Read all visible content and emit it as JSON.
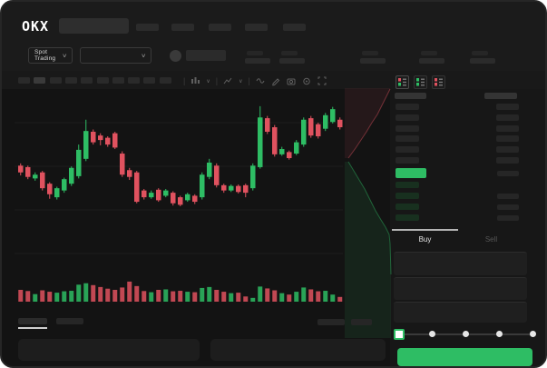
{
  "window": {
    "logo_text": "OKX"
  },
  "header": {
    "nav_item_count": 5,
    "search_value": ""
  },
  "market_bar": {
    "market_selector_label": "Spot Trading",
    "chevron": "∨",
    "stat_block_count": 5
  },
  "chart_toolbar": {
    "timeframe_count": 10,
    "active_timeframe_index": 1,
    "icons": [
      "indicators-dropdown",
      "chart-style-dropdown",
      "wave",
      "draw",
      "camera",
      "settings",
      "fullscreen"
    ]
  },
  "chart_data": {
    "type": "candlestick",
    "title": "",
    "xlabel": "",
    "ylabel": "",
    "ylim": [
      96,
      110.5
    ],
    "grid": true,
    "up_color": "#2ebd64",
    "down_color": "#e0525f",
    "candles_ohlc": [
      [
        102.0,
        102.3,
        100.7,
        101.1
      ],
      [
        101.8,
        102.0,
        100.2,
        100.5
      ],
      [
        100.3,
        101.1,
        100.0,
        100.8
      ],
      [
        101.1,
        101.3,
        98.7,
        99.0
      ],
      [
        99.6,
        99.8,
        97.6,
        98.2
      ],
      [
        97.8,
        99.2,
        97.5,
        99.0
      ],
      [
        98.7,
        100.4,
        98.4,
        100.2
      ],
      [
        99.6,
        101.9,
        99.3,
        101.7
      ],
      [
        100.6,
        104.8,
        100.3,
        104.1
      ],
      [
        102.9,
        108.1,
        102.6,
        106.6
      ],
      [
        106.5,
        106.8,
        104.8,
        105.1
      ],
      [
        106.0,
        106.3,
        104.7,
        105.4
      ],
      [
        105.7,
        105.9,
        104.5,
        104.8
      ],
      [
        106.3,
        106.5,
        104.2,
        104.4
      ],
      [
        103.6,
        103.9,
        100.5,
        100.8
      ],
      [
        101.4,
        101.7,
        100.1,
        100.5
      ],
      [
        101.1,
        101.3,
        97.0,
        97.2
      ],
      [
        98.7,
        98.9,
        97.5,
        97.8
      ],
      [
        97.8,
        98.7,
        97.6,
        98.4
      ],
      [
        98.8,
        99.0,
        97.2,
        97.4
      ],
      [
        98.0,
        98.9,
        97.8,
        98.7
      ],
      [
        98.4,
        98.6,
        96.7,
        97.0
      ],
      [
        97.8,
        98.0,
        96.6,
        96.8
      ],
      [
        97.4,
        98.4,
        97.2,
        98.2
      ],
      [
        98.0,
        98.2,
        96.9,
        97.2
      ],
      [
        97.8,
        101.1,
        97.5,
        100.8
      ],
      [
        100.5,
        102.9,
        100.2,
        102.4
      ],
      [
        102.0,
        102.3,
        99.1,
        99.4
      ],
      [
        99.4,
        99.6,
        98.4,
        98.7
      ],
      [
        98.7,
        99.5,
        98.5,
        99.3
      ],
      [
        99.3,
        99.5,
        98.3,
        98.5
      ],
      [
        99.4,
        99.6,
        97.8,
        98.4
      ],
      [
        99.0,
        102.3,
        98.7,
        102.0
      ],
      [
        101.8,
        109.9,
        101.6,
        108.4
      ],
      [
        108.3,
        108.6,
        106.2,
        106.5
      ],
      [
        107.1,
        107.4,
        103.2,
        103.5
      ],
      [
        103.5,
        104.5,
        103.3,
        104.2
      ],
      [
        103.8,
        104.0,
        102.8,
        103.0
      ],
      [
        103.6,
        105.4,
        103.4,
        105.1
      ],
      [
        104.8,
        108.4,
        104.5,
        108.1
      ],
      [
        108.3,
        108.6,
        105.7,
        106.0
      ],
      [
        107.5,
        107.7,
        105.6,
        105.9
      ],
      [
        106.9,
        109.0,
        106.6,
        108.7
      ],
      [
        107.8,
        109.8,
        107.6,
        109.5
      ],
      [
        108.1,
        108.4,
        106.8,
        107.1
      ]
    ],
    "volumes": [
      50,
      45,
      32,
      48,
      42,
      38,
      44,
      46,
      72,
      78,
      70,
      62,
      55,
      50,
      60,
      85,
      66,
      45,
      40,
      50,
      52,
      44,
      46,
      42,
      40,
      58,
      62,
      50,
      42,
      36,
      38,
      22,
      16,
      64,
      56,
      48,
      36,
      30,
      42,
      60,
      52,
      44,
      46,
      30,
      20
    ]
  },
  "depth_chart": {
    "ask_color": "#e0525f",
    "bid_color": "#2ebd64"
  },
  "orderbook": {
    "view_modes": [
      "combined-book",
      "bids-book",
      "asks-book"
    ],
    "ask_row_count": 6,
    "bid_row_count": 4,
    "last_price_highlight_color": "#2ebd64"
  },
  "trade_panel": {
    "tabs": [
      {
        "label": "Buy",
        "active": true
      },
      {
        "label": "Sell",
        "active": false
      }
    ],
    "field_count": 3,
    "slider_stop_count": 5,
    "slider_position_index": 0,
    "submit_button_label": "",
    "submit_button_color": "#2ebd64"
  },
  "bottom_bar": {
    "left_tab_count": 2,
    "active_left_tab_index": 0,
    "right_chip_count": 2,
    "panel_count": 2
  },
  "colors": {
    "bg": "#131313",
    "up": "#2ebd64",
    "down": "#e0525f",
    "placeholder": "#2b2b2b"
  }
}
